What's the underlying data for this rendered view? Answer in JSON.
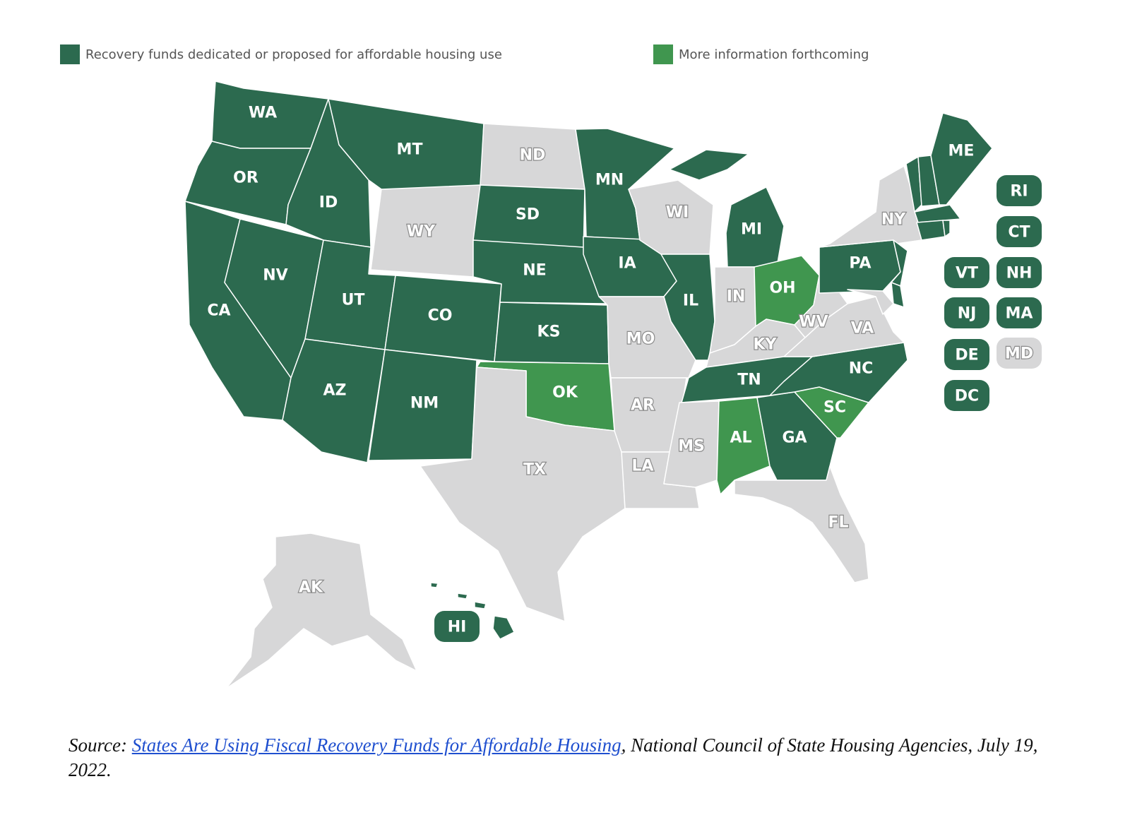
{
  "legend": [
    {
      "label": "Recovery funds dedicated or proposed for affordable housing use",
      "color": "#2c6a4f"
    },
    {
      "label": "More information forthcoming",
      "color": "#40964f"
    }
  ],
  "colors": {
    "dedicated": "#2c6a4f",
    "forthcoming": "#40964f",
    "none": "#d7d7d8"
  },
  "states": {
    "WA": "dedicated",
    "OR": "dedicated",
    "CA": "dedicated",
    "NV": "dedicated",
    "ID": "dedicated",
    "MT": "dedicated",
    "WY": "none",
    "UT": "dedicated",
    "AZ": "dedicated",
    "CO": "dedicated",
    "NM": "dedicated",
    "ND": "none",
    "SD": "dedicated",
    "NE": "dedicated",
    "KS": "dedicated",
    "OK": "forthcoming",
    "TX": "none",
    "MN": "dedicated",
    "IA": "dedicated",
    "MO": "none",
    "AR": "none",
    "LA": "none",
    "WI": "none",
    "IL": "dedicated",
    "MI": "dedicated",
    "IN": "none",
    "OH": "forthcoming",
    "KY": "none",
    "TN": "dedicated",
    "MS": "none",
    "AL": "forthcoming",
    "GA": "dedicated",
    "FL": "none",
    "SC": "forthcoming",
    "NC": "dedicated",
    "VA": "none",
    "WV": "none",
    "PA": "dedicated",
    "NY": "none",
    "ME": "dedicated",
    "AK": "none",
    "HI": "dedicated",
    "RI": "dedicated",
    "CT": "dedicated",
    "VT": "dedicated",
    "NH": "dedicated",
    "NJ": "dedicated",
    "MA": "dedicated",
    "DE": "dedicated",
    "MD": "none",
    "DC": "dedicated"
  },
  "small_states": [
    "RI",
    "CT",
    "VT",
    "NH",
    "NJ",
    "MA",
    "DE",
    "MD",
    "DC"
  ],
  "source": {
    "prefix": "Source: ",
    "link_text": "States Are Using Fiscal Recovery Funds for Affordable Housing",
    "suffix": ", National Council of State Housing Agencies, July 19, 2022."
  }
}
